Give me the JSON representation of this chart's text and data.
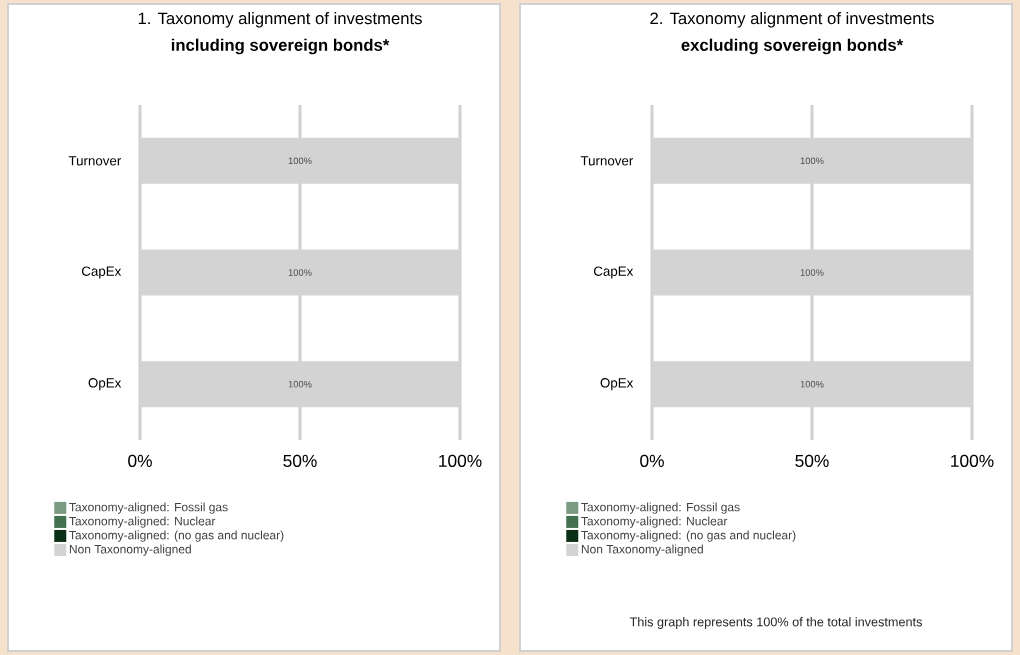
{
  "chart_data": [
    {
      "type": "bar",
      "orientation": "horizontal",
      "stacked": true,
      "title": "1. Taxonomy alignment of investments",
      "subtitle": "including sovereign bonds*",
      "categories": [
        "Turnover",
        "CapEx",
        "OpEx"
      ],
      "series": [
        {
          "name": "Taxonomy-aligned: Fossil gas",
          "color": "#7a9a82",
          "values": [
            0,
            0,
            0
          ]
        },
        {
          "name": "Taxonomy-aligned: Nuclear",
          "color": "#43704f",
          "values": [
            0,
            0,
            0
          ]
        },
        {
          "name": "Taxonomy-aligned: (no gas and nuclear)",
          "color": "#0c2f18",
          "values": [
            0,
            0,
            0
          ]
        },
        {
          "name": "Non Taxonomy-aligned",
          "color": "#d3d3d3",
          "values": [
            100,
            100,
            100
          ],
          "value_labels": [
            "100%",
            "100%",
            "100%"
          ]
        }
      ],
      "xlim": [
        0,
        100
      ],
      "xticks": [
        {
          "value": 0,
          "label": "0%"
        },
        {
          "value": 50,
          "label": "50%"
        },
        {
          "value": 100,
          "label": "100%"
        }
      ],
      "grid": "x",
      "legend": "bottom"
    },
    {
      "type": "bar",
      "orientation": "horizontal",
      "stacked": true,
      "title": "2. Taxonomy alignment of investments",
      "subtitle": "excluding sovereign bonds*",
      "categories": [
        "Turnover",
        "CapEx",
        "OpEx"
      ],
      "series": [
        {
          "name": "Taxonomy-aligned: Fossil gas",
          "color": "#7a9a82",
          "values": [
            0,
            0,
            0
          ]
        },
        {
          "name": "Taxonomy-aligned: Nuclear",
          "color": "#43704f",
          "values": [
            0,
            0,
            0
          ]
        },
        {
          "name": "Taxonomy-aligned: (no gas and nuclear)",
          "color": "#0c2f18",
          "values": [
            0,
            0,
            0
          ]
        },
        {
          "name": "Non Taxonomy-aligned",
          "color": "#d3d3d3",
          "values": [
            100,
            100,
            100
          ],
          "value_labels": [
            "100%",
            "100%",
            "100%"
          ]
        }
      ],
      "xlim": [
        0,
        100
      ],
      "xticks": [
        {
          "value": 0,
          "label": "0%"
        },
        {
          "value": 50,
          "label": "50%"
        },
        {
          "value": 100,
          "label": "100%"
        }
      ],
      "grid": "x",
      "legend": "bottom",
      "annotations": [
        "This graph represents 100% of the total investments"
      ]
    }
  ]
}
